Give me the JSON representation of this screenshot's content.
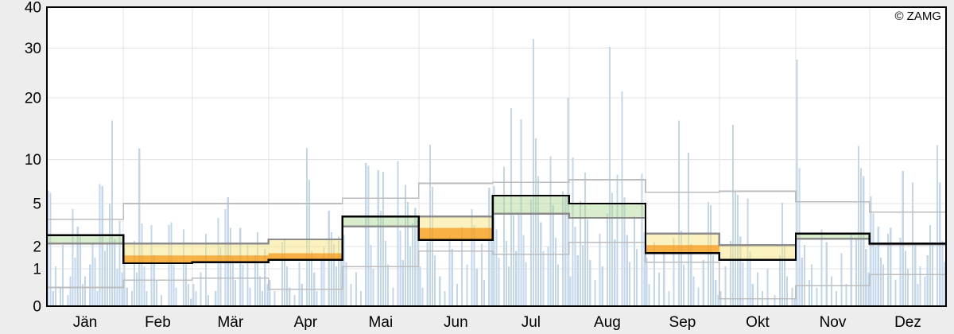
{
  "watermark": "© ZAMG",
  "colors": {
    "page_background": "#ededed",
    "plot_background": "#ffffff",
    "grid": "#e3e3e3",
    "frame": "#000000",
    "bar": "#c3d7eb",
    "band_green": "rgba(170,213,142,0.45)",
    "band_yellow": "rgba(250,229,130,0.50)",
    "band_orange": "rgba(247,160,28,0.82)",
    "percentile_line": "#bdbdbd",
    "median_line": "#8c8c8c",
    "current_line": "#000000",
    "text": "#000000"
  },
  "chart_data": {
    "type": "bar",
    "title": "",
    "xlabel": "",
    "ylabel": "",
    "unit": "mm",
    "description": "Daily precipitation bars for one year with monthly climatological step lines: thin grey = upper/lower percentiles, thick grey = climatological median, black = current monthly value; band green when above median, yellow/orange when below.",
    "y_axis": {
      "scale": "sqrt-like",
      "range": [
        0,
        40
      ],
      "ticks": [
        0,
        1,
        2,
        5,
        10,
        20,
        30,
        40
      ],
      "tick_labels": [
        "0",
        "1",
        "2",
        "5",
        "10",
        "20",
        "30",
        "40"
      ],
      "grid": true
    },
    "x_axis": {
      "categories": [
        "Jän",
        "Feb",
        "Mär",
        "Apr",
        "Mai",
        "Jun",
        "Jul",
        "Aug",
        "Sep",
        "Okt",
        "Nov",
        "Dez"
      ],
      "grid": true
    },
    "months": [
      {
        "label": "Jän",
        "days": 31,
        "upper": 3.9,
        "median": 2.2,
        "current": 2.8,
        "lower": 0.5
      },
      {
        "label": "Feb",
        "days": 28,
        "upper": 5.0,
        "median": 2.2,
        "current": 1.25,
        "p25": 1.6,
        "lower": 0.7
      },
      {
        "label": "Mär",
        "days": 31,
        "upper": 5.0,
        "median": 2.2,
        "current": 1.3,
        "p25": 1.6,
        "lower": 0.75
      },
      {
        "label": "Apr",
        "days": 30,
        "upper": 5.0,
        "median": 2.5,
        "current": 1.4,
        "p25": 1.7,
        "lower": 0.45
      },
      {
        "label": "Mai",
        "days": 31,
        "upper": 5.6,
        "median": 3.4,
        "current": 4.1,
        "lower": 1.1
      },
      {
        "label": "Jun",
        "days": 30,
        "upper": 7.3,
        "median": 4.1,
        "current": 2.45,
        "p25": 3.3,
        "lower": 1.8
      },
      {
        "label": "Jul",
        "days": 31,
        "upper": 7.4,
        "median": 4.3,
        "current": 5.9,
        "lower": 1.65
      },
      {
        "label": "Aug",
        "days": 31,
        "upper": 7.7,
        "median": 4.0,
        "current": 5.0,
        "lower": 2.3
      },
      {
        "label": "Sep",
        "days": 30,
        "upper": 6.3,
        "median": 2.9,
        "current": 1.7,
        "p25": 2.1,
        "lower": 1.3
      },
      {
        "label": "Okt",
        "days": 31,
        "upper": 6.4,
        "median": 2.1,
        "current": 1.4,
        "p25": 1.3,
        "lower": 0.2
      },
      {
        "label": "Nov",
        "days": 30,
        "upper": 5.2,
        "median": 2.55,
        "current": 2.9,
        "lower": 0.55
      },
      {
        "label": "Dez",
        "days": 31,
        "upper": 4.4,
        "median": 2.15,
        "current": 2.2,
        "lower": 0.85
      }
    ],
    "daily_values": [
      6.5,
      6.2,
      0.4,
      1.1,
      0,
      0.5,
      2.1,
      0,
      0.3,
      0.8,
      4.6,
      1.5,
      3.4,
      2.7,
      0.6,
      0.8,
      0,
      1.2,
      2.2,
      1.5,
      0.4,
      7.2,
      7.0,
      1.8,
      2.3,
      5.0,
      16.3,
      2.5,
      1.0,
      3.8,
      0.9,
      1.9,
      0.5,
      0,
      0.4,
      2.4,
      0.9,
      11.8,
      3.6,
      1.1,
      0.4,
      0,
      3.5,
      1.6,
      0.7,
      0,
      0.3,
      0,
      0,
      3.5,
      3.7,
      1.2,
      0.5,
      0,
      0,
      3.2,
      1.4,
      0.6,
      0.2,
      0.6,
      0.4,
      0,
      0.9,
      0,
      2.9,
      0.3,
      0,
      0,
      0.4,
      4.0,
      2.0,
      0,
      4.6,
      5.7,
      3.3,
      1.5,
      0.7,
      0,
      3.3,
      1.2,
      0,
      2.1,
      0.5,
      0,
      1.6,
      3.0,
      0.8,
      0.4,
      1.9,
      0.6,
      0.7,
      0,
      0.4,
      0,
      0,
      2.3,
      2.5,
      1.1,
      0.5,
      0,
      0.3,
      0,
      1.3,
      0.6,
      0,
      11.9,
      7.7,
      1.8,
      0.9,
      0.4,
      0,
      1.5,
      2.0,
      0,
      4.5,
      3.0,
      2.2,
      1.1,
      2.7,
      1.6,
      2.8,
      1.3,
      0,
      0.6,
      0,
      0.9,
      0,
      0.4,
      0,
      9.6,
      9.3,
      2.1,
      1.0,
      0,
      8.8,
      4.5,
      8.6,
      2.4,
      1.2,
      0,
      0.5,
      0,
      9.8,
      3.1,
      1.4,
      7.1,
      5.2,
      2.0,
      3.6,
      4.7,
      3.9,
      1.1,
      0.5,
      0,
      2.3,
      12.4,
      6.9,
      1.6,
      0,
      0.8,
      0,
      0.4,
      0,
      2.7,
      1.9,
      0,
      0.6,
      0,
      3.4,
      0,
      1.2,
      0,
      4.6,
      3.5,
      1.0,
      0,
      2.2,
      0.7,
      0,
      6.8,
      2.9,
      7.0,
      3.2,
      1.5,
      0,
      9.2,
      2.4,
      1.1,
      18.3,
      4.2,
      1.8,
      4.4,
      16.5,
      2.8,
      1.3,
      0,
      5.5,
      32.2,
      13.4,
      8.1,
      3.7,
      1.8,
      0,
      2.0,
      10.5,
      4.9,
      2.6,
      1.2,
      0,
      6.4,
      6.0,
      20.0,
      0.8,
      10.3,
      3.4,
      1.6,
      5.3,
      2.1,
      8.5,
      3.9,
      1.4,
      0,
      0.7,
      0,
      2.9,
      1.1,
      0,
      4.3,
      30.3,
      6.2,
      2.5,
      8.3,
      0,
      21.3,
      5.7,
      2.8,
      1.3,
      0,
      4.1,
      1.9,
      0,
      8.4,
      3.0,
      1.5,
      0.6,
      0,
      2.3,
      0,
      0.9,
      0,
      1.8,
      0,
      0.4,
      0,
      2.6,
      0,
      16.3,
      3.1,
      1.2,
      0,
      11.1,
      2.2,
      0.8,
      0,
      0.5,
      0,
      1.4,
      0,
      5.2,
      4.9,
      1.6,
      0.7,
      0.3,
      0.4,
      0,
      1.1,
      0,
      2.4,
      15.6,
      6.3,
      6.0,
      2.7,
      1.3,
      0,
      5.6,
      1.8,
      0.6,
      0,
      0.9,
      0,
      0.4,
      0,
      1.0,
      0,
      0,
      0.3,
      0,
      1.6,
      5.1,
      2.2,
      0.8,
      0,
      0.5,
      0.2,
      27.7,
      9.0,
      1.5,
      2.1,
      0,
      0.7,
      1.2,
      0,
      0.5,
      0,
      3.2,
      0,
      2.3,
      0,
      0.8,
      0,
      0.4,
      0,
      1.7,
      0,
      0.6,
      0,
      2.8,
      0,
      2.5,
      12.2,
      9.0,
      8.1,
      1.9,
      0.9,
      5.8,
      4.3,
      2.0,
      3.4,
      1.5,
      1.2,
      0,
      2.9,
      3.3,
      0,
      0.7,
      0,
      2.6,
      8.7,
      1.8,
      1.0,
      0,
      7.4,
      2.1,
      0.6,
      1.1,
      0,
      0.8,
      1.6,
      3.5,
      2.3,
      0,
      12.3,
      7.4,
      2.4,
      1.3
    ]
  }
}
